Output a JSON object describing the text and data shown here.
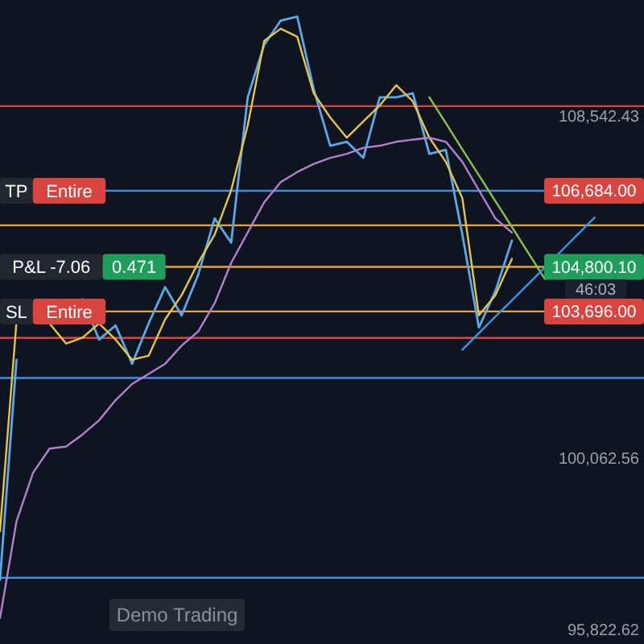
{
  "chart_data": {
    "type": "line",
    "categories": [
      null,
      null,
      null,
      null,
      null,
      null,
      null,
      null,
      null,
      null,
      null,
      null,
      null,
      null,
      null,
      null,
      null,
      null,
      null,
      null,
      null,
      null,
      null,
      null,
      null,
      null,
      null,
      null,
      null,
      null,
      null,
      null,
      null,
      null,
      null,
      null,
      null,
      null,
      null,
      null
    ],
    "ylim": [
      95460,
      111410
    ],
    "yticks": [
      {
        "value": 108542.43,
        "label": "108,542.43"
      },
      {
        "value": 100062.56,
        "label": "100,062.56"
      },
      {
        "value": 95822.62,
        "label": "95,822.62"
      }
    ],
    "tick_labels": "y",
    "marker": "none",
    "line_style": "solid",
    "series": [
      {
        "color": "#5aa9ea",
        "values": [
          97050,
          102500,
          null,
          null,
          null,
          104000,
          103000,
          103350,
          102400,
          103400,
          104300,
          103600,
          104600,
          106000,
          105400,
          109000,
          110300,
          110900,
          111000,
          109200,
          107800,
          107900,
          107500,
          109000,
          109000,
          109100,
          107600,
          107700,
          105600,
          103300,
          104200,
          105450,
          null,
          null,
          null,
          null,
          null,
          null,
          null,
          null
        ]
      },
      {
        "color": "#e8c547",
        "values": [
          98250,
          103450,
          null,
          103400,
          102900,
          103050,
          103400,
          103000,
          102500,
          102600,
          103500,
          104100,
          104900,
          105600,
          106700,
          108300,
          110400,
          110700,
          110500,
          109100,
          108500,
          108000,
          108400,
          108800,
          109300,
          108900,
          108000,
          107400,
          106500,
          103600,
          104100,
          105000,
          null,
          null,
          null,
          null,
          null,
          null,
          null,
          null
        ]
      },
      {
        "color": "#b57fd0",
        "values": [
          96100,
          98500,
          99700,
          100300,
          100350,
          100650,
          101000,
          101500,
          101900,
          102150,
          102400,
          102850,
          103200,
          103900,
          104900,
          105650,
          106400,
          106900,
          107150,
          107350,
          107500,
          107600,
          107750,
          107800,
          107900,
          107950,
          108000,
          107900,
          107400,
          106700,
          106000,
          105650,
          null,
          null,
          null,
          null,
          null,
          null,
          null,
          null
        ]
      },
      {
        "color": "#8bc34a",
        "values": [
          null,
          null,
          null,
          null,
          null,
          null,
          null,
          null,
          null,
          null,
          null,
          null,
          null,
          null,
          null,
          null,
          null,
          null,
          null,
          null,
          null,
          null,
          null,
          null,
          null,
          null,
          109000,
          108360,
          107710,
          107070,
          106430,
          105790,
          105140,
          104500,
          null,
          null,
          null,
          null,
          null,
          null
        ]
      },
      {
        "color": "#2f9bf0",
        "values": [
          null,
          null,
          null,
          null,
          null,
          null,
          null,
          null,
          null,
          null,
          null,
          null,
          null,
          null,
          null,
          null,
          null,
          null,
          null,
          null,
          null,
          null,
          null,
          null,
          null,
          null,
          null,
          null,
          102750,
          103160,
          103570,
          103970,
          104380,
          104790,
          105200,
          105610,
          106020,
          null,
          null,
          null
        ]
      }
    ],
    "ref_lines": [
      {
        "axis": "y",
        "value": 108780,
        "color": "#d9443f"
      },
      {
        "axis": "y",
        "value": 106684,
        "label": "106,684.00",
        "color": "#3d8fe0"
      },
      {
        "axis": "y",
        "value": 105830,
        "color": "#e8a33a"
      },
      {
        "axis": "y",
        "value": 104800.1,
        "label": "104,800.10",
        "color": "#e8a33a"
      },
      {
        "axis": "y",
        "value": 103696,
        "label": "103,696.00",
        "color": "#e8a33a"
      },
      {
        "axis": "y",
        "value": 103040,
        "color": "#d9443f"
      },
      {
        "axis": "y",
        "value": 102050,
        "color": "#3d8fe0"
      },
      {
        "axis": "y",
        "value": 97100,
        "color": "#3d8fe0"
      }
    ],
    "annotations": [
      {
        "text": "TP",
        "y": 106684
      },
      {
        "text": "Entire",
        "y": 106684
      },
      {
        "text": "P&L -7.06",
        "y": 104800.1
      },
      {
        "text": "0.471",
        "y": 104800.1
      },
      {
        "text": "SL",
        "y": 103696
      },
      {
        "text": "Entire",
        "y": 103696
      },
      {
        "text": "46:03",
        "y": 104250
      },
      "Demo Trading"
    ]
  }
}
